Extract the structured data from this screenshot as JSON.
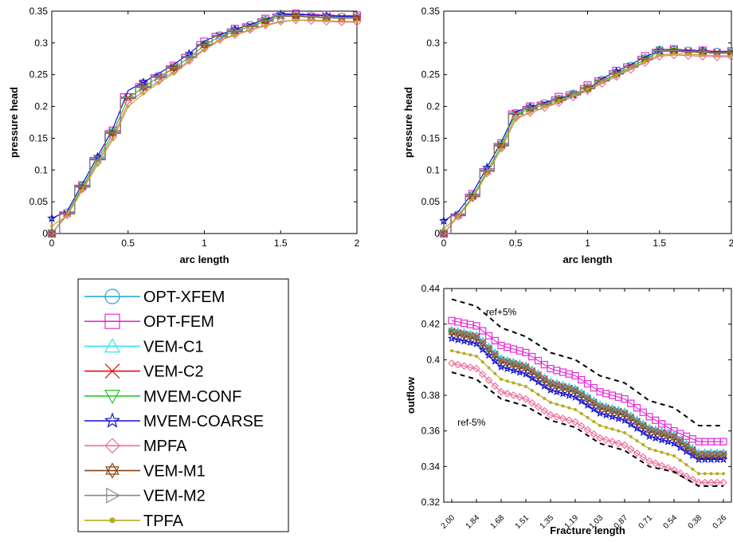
{
  "legend": {
    "entries": [
      {
        "name": "OPT-XFEM",
        "color": "#1fa3d6",
        "marker": "circle"
      },
      {
        "name": "OPT-FEM",
        "color": "#e22bd6",
        "marker": "square"
      },
      {
        "name": "VEM-C1",
        "color": "#33e6e6",
        "marker": "triangle-up"
      },
      {
        "name": "VEM-C2",
        "color": "#e01010",
        "marker": "x"
      },
      {
        "name": "MVEM-CONF",
        "color": "#22cc22",
        "marker": "triangle-down"
      },
      {
        "name": "MVEM-COARSE",
        "color": "#1010d0",
        "marker": "star"
      },
      {
        "name": "MPFA",
        "color": "#ee6fa0",
        "marker": "diamond"
      },
      {
        "name": "VEM-M1",
        "color": "#8b4513",
        "marker": "hexagram"
      },
      {
        "name": "VEM-M2",
        "color": "#888888",
        "marker": "triangle-right"
      },
      {
        "name": "TPFA",
        "color": "#b8aa20",
        "marker": "dot"
      }
    ]
  },
  "chart_data": [
    {
      "type": "line",
      "xlabel": "arc length",
      "ylabel": "pressure head",
      "xlim": [
        0,
        2
      ],
      "ylim": [
        0,
        0.35
      ],
      "xticks": [
        "0",
        "0.5",
        "1",
        "1.5",
        "2"
      ],
      "yticks": [
        "0",
        "0.05",
        "0.1",
        "0.15",
        "0.2",
        "0.25",
        "0.3",
        "0.35"
      ],
      "x": [
        0,
        0.1,
        0.2,
        0.3,
        0.4,
        0.5,
        0.6,
        0.7,
        0.8,
        0.9,
        1.0,
        1.1,
        1.2,
        1.3,
        1.4,
        1.5,
        1.6,
        1.7,
        1.8,
        1.9,
        2.0
      ],
      "series": [
        {
          "name": "OPT-XFEM",
          "values": [
            0.0,
            0.033,
            0.075,
            0.118,
            0.16,
            0.215,
            0.232,
            0.248,
            0.262,
            0.279,
            0.298,
            0.312,
            0.32,
            0.328,
            0.336,
            0.344,
            0.344,
            0.342,
            0.341,
            0.341,
            0.341
          ]
        },
        {
          "name": "OPT-FEM",
          "values": [
            0.0,
            0.034,
            0.076,
            0.12,
            0.162,
            0.22,
            0.236,
            0.25,
            0.264,
            0.282,
            0.302,
            0.315,
            0.322,
            0.33,
            0.338,
            0.346,
            0.346,
            0.345,
            0.344,
            0.343,
            0.343
          ]
        },
        {
          "name": "VEM-C1",
          "values": [
            0.0,
            0.032,
            0.074,
            0.117,
            0.159,
            0.214,
            0.231,
            0.247,
            0.261,
            0.278,
            0.297,
            0.311,
            0.319,
            0.327,
            0.335,
            0.343,
            0.343,
            0.342,
            0.341,
            0.34,
            0.34
          ]
        },
        {
          "name": "VEM-C2",
          "values": [
            0.0,
            0.032,
            0.074,
            0.117,
            0.159,
            0.214,
            0.231,
            0.247,
            0.261,
            0.278,
            0.297,
            0.311,
            0.319,
            0.327,
            0.335,
            0.343,
            0.343,
            0.342,
            0.341,
            0.34,
            0.34
          ]
        },
        {
          "name": "MVEM-CONF",
          "values": [
            0.0,
            0.031,
            0.073,
            0.116,
            0.158,
            0.213,
            0.23,
            0.246,
            0.26,
            0.277,
            0.296,
            0.31,
            0.318,
            0.326,
            0.334,
            0.342,
            0.342,
            0.341,
            0.34,
            0.339,
            0.339
          ]
        },
        {
          "name": "MVEM-COARSE",
          "values": [
            0.024,
            0.035,
            0.078,
            0.121,
            0.165,
            0.225,
            0.238,
            0.252,
            0.266,
            0.283,
            0.303,
            0.313,
            0.321,
            0.329,
            0.337,
            0.345,
            0.345,
            0.344,
            0.343,
            0.342,
            0.342
          ]
        },
        {
          "name": "MPFA",
          "values": [
            0.0,
            0.029,
            0.07,
            0.112,
            0.152,
            0.205,
            0.224,
            0.24,
            0.255,
            0.272,
            0.291,
            0.305,
            0.313,
            0.321,
            0.328,
            0.334,
            0.336,
            0.335,
            0.334,
            0.333,
            0.333
          ]
        },
        {
          "name": "VEM-M1",
          "values": [
            0.0,
            0.031,
            0.073,
            0.116,
            0.158,
            0.213,
            0.23,
            0.246,
            0.26,
            0.277,
            0.296,
            0.31,
            0.318,
            0.326,
            0.334,
            0.342,
            0.342,
            0.341,
            0.34,
            0.339,
            0.339
          ]
        },
        {
          "name": "VEM-M2",
          "values": [
            0.0,
            0.032,
            0.074,
            0.117,
            0.159,
            0.214,
            0.231,
            0.247,
            0.261,
            0.278,
            0.297,
            0.311,
            0.319,
            0.327,
            0.335,
            0.343,
            0.343,
            0.342,
            0.341,
            0.34,
            0.34
          ]
        },
        {
          "name": "TPFA",
          "values": [
            0.012,
            0.028,
            0.068,
            0.108,
            0.148,
            0.2,
            0.22,
            0.237,
            0.252,
            0.27,
            0.289,
            0.304,
            0.312,
            0.32,
            0.327,
            0.333,
            0.336,
            0.336,
            0.335,
            0.334,
            0.334
          ]
        }
      ]
    },
    {
      "type": "line",
      "xlabel": "arc length",
      "ylabel": "pressure head",
      "xlim": [
        0,
        2
      ],
      "ylim": [
        0,
        0.35
      ],
      "xticks": [
        "0",
        "0.5",
        "1",
        "1.5",
        "2"
      ],
      "yticks": [
        "0",
        "0.05",
        "0.1",
        "0.15",
        "0.2",
        "0.25",
        "0.3",
        "0.35"
      ],
      "x": [
        0,
        0.1,
        0.2,
        0.3,
        0.4,
        0.5,
        0.6,
        0.7,
        0.8,
        0.9,
        1.0,
        1.1,
        1.2,
        1.3,
        1.4,
        1.5,
        1.6,
        1.7,
        1.8,
        1.9,
        2.0
      ],
      "series": [
        {
          "name": "OPT-XFEM",
          "values": [
            0.0,
            0.03,
            0.06,
            0.1,
            0.14,
            0.19,
            0.198,
            0.205,
            0.212,
            0.22,
            0.23,
            0.242,
            0.253,
            0.264,
            0.276,
            0.289,
            0.289,
            0.288,
            0.287,
            0.286,
            0.286
          ]
        },
        {
          "name": "OPT-FEM",
          "values": [
            0.0,
            0.031,
            0.062,
            0.102,
            0.142,
            0.193,
            0.2,
            0.207,
            0.215,
            0.223,
            0.233,
            0.245,
            0.256,
            0.267,
            0.279,
            0.29,
            0.29,
            0.289,
            0.288,
            0.287,
            0.287
          ]
        },
        {
          "name": "VEM-C1",
          "values": [
            0.0,
            0.029,
            0.059,
            0.099,
            0.139,
            0.189,
            0.197,
            0.204,
            0.211,
            0.219,
            0.229,
            0.241,
            0.252,
            0.263,
            0.275,
            0.288,
            0.288,
            0.287,
            0.286,
            0.285,
            0.285
          ]
        },
        {
          "name": "VEM-C2",
          "values": [
            0.0,
            0.029,
            0.059,
            0.099,
            0.139,
            0.189,
            0.197,
            0.204,
            0.211,
            0.219,
            0.229,
            0.241,
            0.252,
            0.263,
            0.275,
            0.288,
            0.288,
            0.287,
            0.286,
            0.285,
            0.285
          ]
        },
        {
          "name": "MVEM-CONF",
          "values": [
            0.0,
            0.028,
            0.058,
            0.098,
            0.138,
            0.188,
            0.196,
            0.203,
            0.21,
            0.218,
            0.228,
            0.24,
            0.251,
            0.262,
            0.274,
            0.287,
            0.287,
            0.286,
            0.285,
            0.284,
            0.284
          ]
        },
        {
          "name": "MVEM-COARSE",
          "values": [
            0.02,
            0.034,
            0.064,
            0.104,
            0.144,
            0.192,
            0.199,
            0.206,
            0.213,
            0.218,
            0.226,
            0.244,
            0.255,
            0.266,
            0.278,
            0.288,
            0.289,
            0.288,
            0.287,
            0.286,
            0.286
          ]
        },
        {
          "name": "MPFA",
          "values": [
            0.0,
            0.027,
            0.056,
            0.095,
            0.134,
            0.182,
            0.19,
            0.198,
            0.206,
            0.215,
            0.225,
            0.236,
            0.247,
            0.258,
            0.269,
            0.279,
            0.281,
            0.28,
            0.279,
            0.278,
            0.278
          ]
        },
        {
          "name": "VEM-M1",
          "values": [
            0.0,
            0.028,
            0.058,
            0.098,
            0.138,
            0.188,
            0.196,
            0.203,
            0.21,
            0.218,
            0.228,
            0.24,
            0.251,
            0.262,
            0.274,
            0.287,
            0.287,
            0.286,
            0.285,
            0.284,
            0.284
          ]
        },
        {
          "name": "VEM-M2",
          "values": [
            0.0,
            0.029,
            0.059,
            0.099,
            0.139,
            0.189,
            0.197,
            0.204,
            0.211,
            0.219,
            0.229,
            0.241,
            0.252,
            0.263,
            0.275,
            0.288,
            0.288,
            0.287,
            0.286,
            0.285,
            0.285
          ]
        },
        {
          "name": "TPFA",
          "values": [
            0.008,
            0.026,
            0.055,
            0.094,
            0.133,
            0.18,
            0.19,
            0.199,
            0.208,
            0.217,
            0.227,
            0.238,
            0.249,
            0.26,
            0.271,
            0.281,
            0.283,
            0.282,
            0.281,
            0.28,
            0.28
          ]
        }
      ]
    },
    {
      "type": "line",
      "xlabel": "Fracture length",
      "ylabel": "outflow",
      "ylim": [
        0.32,
        0.44
      ],
      "yticks": [
        "0.32",
        "0.34",
        "0.36",
        "0.38",
        "0.4",
        "0.42",
        "0.44"
      ],
      "categories": [
        "2.00",
        "1.84",
        "1.68",
        "1.51",
        "1.35",
        "1.19",
        "1.03",
        "0.87",
        "0.71",
        "0.54",
        "0.38",
        "0.26"
      ],
      "annotations": [
        "ref+5%",
        "ref-5%"
      ],
      "series": [
        {
          "name": "ref+5%",
          "values": [
            0.434,
            0.43,
            0.418,
            0.413,
            0.404,
            0.4,
            0.391,
            0.387,
            0.377,
            0.373,
            0.363,
            0.363
          ]
        },
        {
          "name": "OPT-FEM",
          "values": [
            0.422,
            0.419,
            0.408,
            0.404,
            0.395,
            0.391,
            0.382,
            0.378,
            0.368,
            0.36,
            0.354,
            0.354
          ]
        },
        {
          "name": "OPT-XFEM",
          "values": [
            0.416,
            0.413,
            0.4,
            0.396,
            0.387,
            0.383,
            0.374,
            0.37,
            0.361,
            0.357,
            0.347,
            0.347
          ]
        },
        {
          "name": "VEM-C1",
          "values": [
            0.417,
            0.414,
            0.401,
            0.397,
            0.388,
            0.384,
            0.375,
            0.371,
            0.362,
            0.358,
            0.348,
            0.348
          ]
        },
        {
          "name": "VEM-C2",
          "values": [
            0.416,
            0.413,
            0.4,
            0.396,
            0.387,
            0.383,
            0.374,
            0.37,
            0.361,
            0.357,
            0.347,
            0.347
          ]
        },
        {
          "name": "MVEM-CONF",
          "values": [
            0.415,
            0.412,
            0.399,
            0.395,
            0.386,
            0.382,
            0.373,
            0.369,
            0.36,
            0.356,
            0.346,
            0.346
          ]
        },
        {
          "name": "MVEM-COARSE",
          "values": [
            0.412,
            0.409,
            0.396,
            0.392,
            0.383,
            0.379,
            0.37,
            0.366,
            0.357,
            0.353,
            0.344,
            0.344
          ]
        },
        {
          "name": "VEM-M1",
          "values": [
            0.415,
            0.412,
            0.399,
            0.395,
            0.386,
            0.382,
            0.373,
            0.369,
            0.36,
            0.356,
            0.346,
            0.346
          ]
        },
        {
          "name": "VEM-M2",
          "values": [
            0.416,
            0.413,
            0.4,
            0.396,
            0.387,
            0.383,
            0.374,
            0.37,
            0.361,
            0.357,
            0.347,
            0.347
          ]
        },
        {
          "name": "TPFA",
          "values": [
            0.405,
            0.402,
            0.389,
            0.385,
            0.376,
            0.372,
            0.363,
            0.359,
            0.35,
            0.346,
            0.336,
            0.336
          ]
        },
        {
          "name": "MPFA",
          "values": [
            0.398,
            0.395,
            0.382,
            0.378,
            0.369,
            0.365,
            0.356,
            0.352,
            0.343,
            0.338,
            0.331,
            0.331
          ]
        },
        {
          "name": "ref-5%",
          "values": [
            0.393,
            0.389,
            0.378,
            0.374,
            0.366,
            0.362,
            0.353,
            0.349,
            0.34,
            0.337,
            0.329,
            0.329
          ]
        }
      ]
    }
  ]
}
